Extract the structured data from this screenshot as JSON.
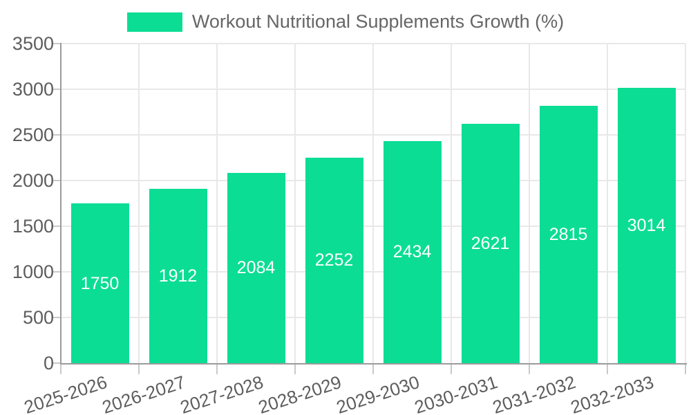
{
  "chart_data": {
    "type": "bar",
    "series_name": "Workout Nutritional Supplements Growth (%)",
    "categories": [
      "2025-2026",
      "2026-2027",
      "2027-2028",
      "2028-2029",
      "2029-2030",
      "2030-2031",
      "2031-2032",
      "2032-2033"
    ],
    "values": [
      1750,
      1912,
      2084,
      2252,
      2434,
      2621,
      2815,
      3014
    ],
    "ylim": [
      0,
      3500
    ],
    "yticks": [
      0,
      500,
      1000,
      1500,
      2000,
      2500,
      3000,
      3500
    ],
    "grid": true,
    "legend_position": "top",
    "bar_color": "#0bdd95",
    "value_label_color": "#ffffff"
  },
  "colors": {
    "grid": "#e8e8e8",
    "axis": "#9b9b9b",
    "tick": "#c9c9c9",
    "axis_text": "#5d5d5d",
    "legend_text": "#666666",
    "background": "#ffffff"
  }
}
